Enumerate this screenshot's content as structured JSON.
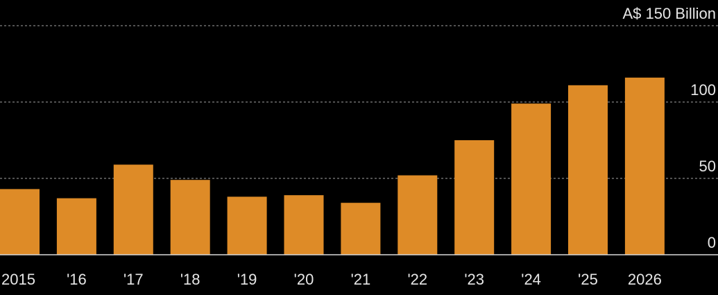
{
  "colors": {
    "background": "#000000",
    "bar": "#de8b27",
    "grid": "#6e6e6e",
    "axis": "#d9d9d9",
    "text": "#e6e6e6"
  },
  "chart_data": {
    "type": "bar",
    "categories": [
      "2015",
      "'16",
      "'17",
      "'18",
      "'19",
      "'20",
      "'21",
      "'22",
      "'23",
      "'24",
      "'25",
      "2026"
    ],
    "values": [
      43,
      37,
      59,
      49,
      38,
      39,
      34,
      52,
      75,
      99,
      111,
      116
    ],
    "y_ticks": [
      {
        "value": 150,
        "label": "A$ 150  Billion"
      },
      {
        "value": 100,
        "label": "100"
      },
      {
        "value": 50,
        "label": "50"
      },
      {
        "value": 0,
        "label": "0"
      }
    ],
    "ylim": [
      0,
      150
    ],
    "grid": true,
    "y_axis_side": "right",
    "title": "",
    "xlabel": "",
    "ylabel": ""
  }
}
